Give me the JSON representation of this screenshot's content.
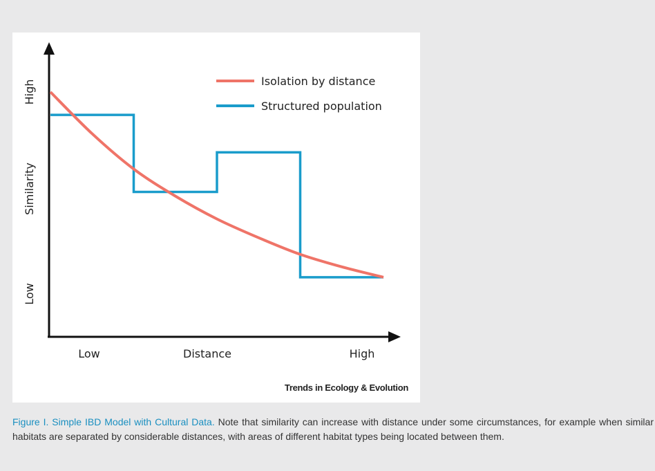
{
  "figure": {
    "credit": "Trends in Ecology & Evolution",
    "caption_title": "Figure I. Simple IBD Model with Cultural Data.",
    "caption_body": " Note that similarity can increase with distance under some circumstances, for example when similar habitats are separated by considerable distances, with areas of different habitat types being located between them."
  },
  "chart_data": {
    "type": "line",
    "xlabel": "Distance",
    "ylabel": "Similarity",
    "x_ticks": [
      "Low",
      "High"
    ],
    "y_ticks": [
      "Low",
      "High"
    ],
    "xlim": [
      0,
      1
    ],
    "ylim": [
      0,
      1
    ],
    "legend_position": "top-right",
    "grid": false,
    "series": [
      {
        "name": "Isolation by distance",
        "color": "#ef7468",
        "kind": "curve",
        "x": [
          0,
          0.125,
          0.25,
          0.375,
          0.5,
          0.625,
          0.75,
          0.875,
          1.0
        ],
        "y": [
          1.0,
          0.8,
          0.63,
          0.5,
          0.39,
          0.3,
          0.22,
          0.16,
          0.11
        ]
      },
      {
        "name": "Structured population",
        "color": "#1a9ccb",
        "kind": "step",
        "x": [
          0,
          0.25,
          0.25,
          0.5,
          0.5,
          0.75,
          0.75,
          1.0
        ],
        "y": [
          0.89,
          0.89,
          0.52,
          0.52,
          0.71,
          0.71,
          0.11,
          0.11
        ]
      }
    ]
  }
}
